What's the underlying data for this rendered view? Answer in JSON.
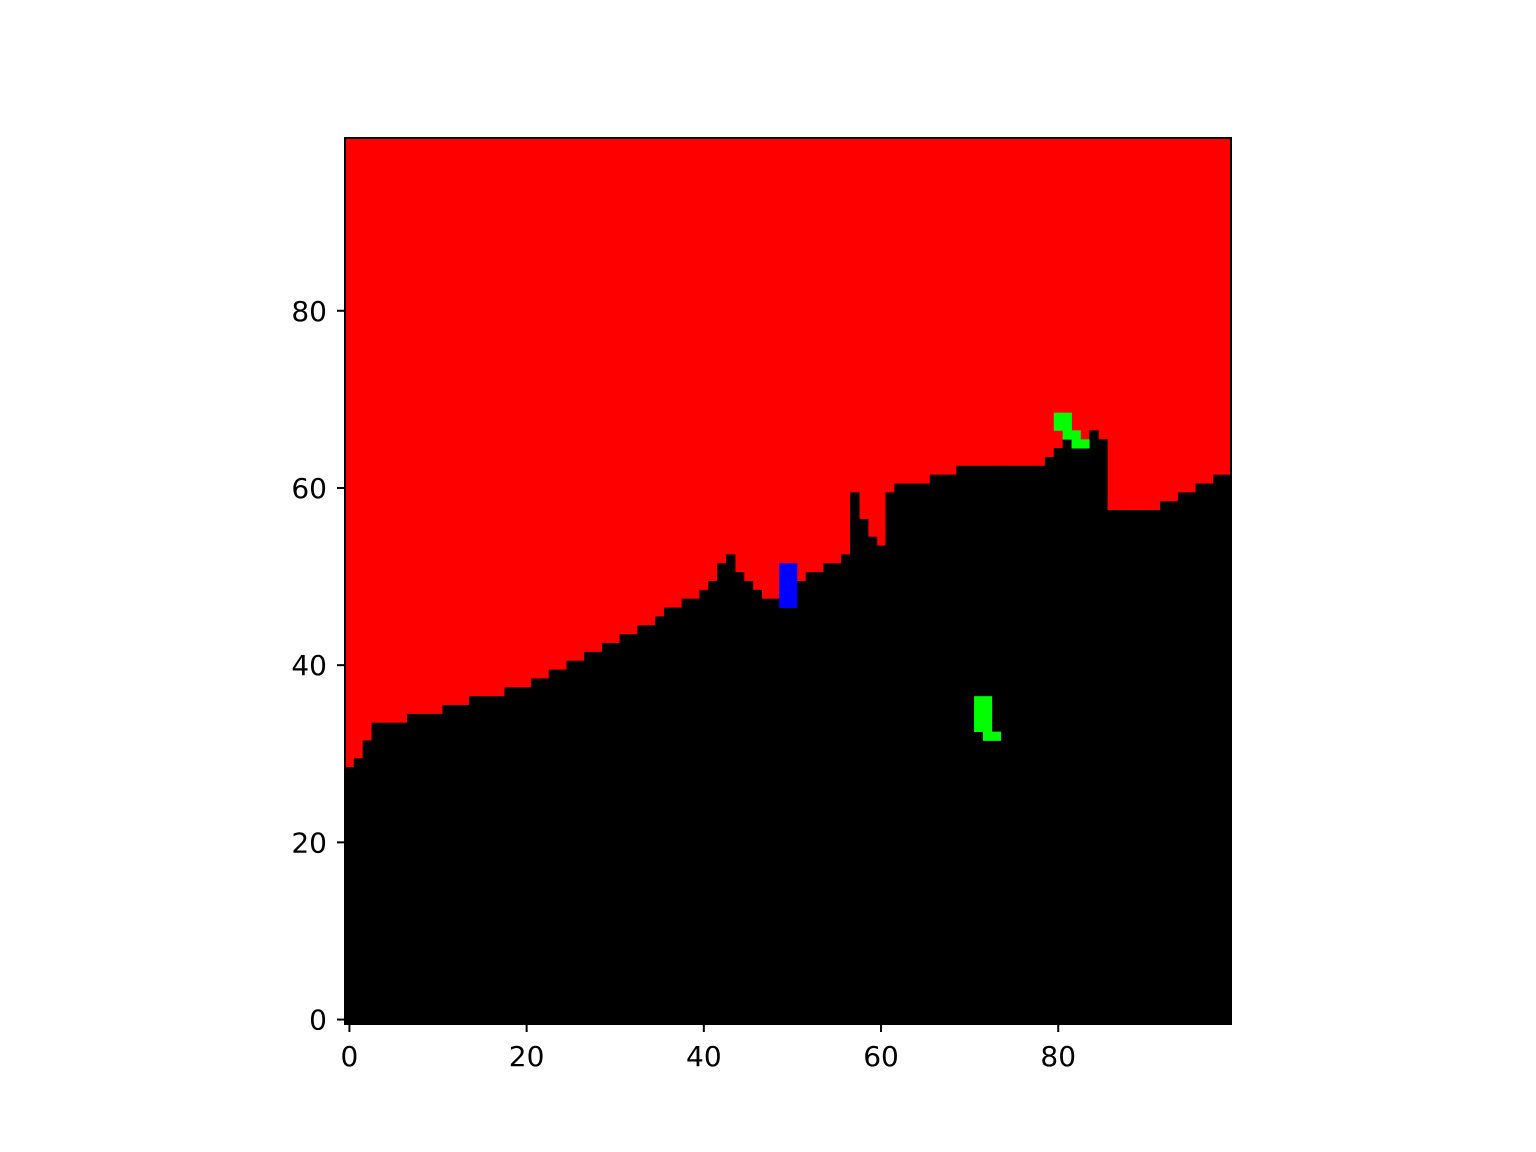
{
  "chart_data": {
    "type": "heatmap",
    "title": "",
    "xlabel": "",
    "ylabel": "",
    "xlim": [
      -0.5,
      99.5
    ],
    "ylim": [
      -0.5,
      99.5
    ],
    "origin": "lower",
    "grid": false,
    "colors": {
      "background": "#ff0000",
      "foreground": "#000000",
      "green_marker": "#00ff00",
      "blue_marker": "#0000ff"
    },
    "x_ticks": [
      0,
      20,
      40,
      60,
      80
    ],
    "x_tick_labels": [
      "0",
      "20",
      "40",
      "60",
      "80"
    ],
    "y_ticks": [
      0,
      20,
      40,
      60,
      80
    ],
    "y_tick_labels": [
      "0",
      "20",
      "40",
      "60",
      "80"
    ],
    "boundary": {
      "description": "For each column x, cells with y <= top are black; above is red.",
      "x": [
        0,
        1,
        2,
        3,
        7,
        11,
        14,
        18,
        21,
        23,
        25,
        27,
        29,
        31,
        33,
        35,
        36,
        38,
        40,
        41,
        42,
        43,
        44,
        45,
        46,
        47,
        49,
        51,
        52,
        54,
        56,
        57,
        58,
        59,
        60,
        61,
        62,
        63,
        66,
        69,
        74,
        79,
        80,
        81,
        82,
        83,
        84,
        85,
        86,
        87,
        92,
        94,
        96,
        98,
        99
      ],
      "top": [
        28,
        29,
        31,
        33,
        34,
        35,
        36,
        37,
        38,
        39,
        40,
        41,
        42,
        43,
        44,
        45,
        46,
        47,
        48,
        49,
        51,
        52,
        50,
        49,
        48,
        47,
        48,
        49,
        50,
        51,
        52,
        59,
        56,
        54,
        53,
        59,
        60,
        60,
        61,
        62,
        62,
        63,
        64,
        65,
        64,
        65,
        66,
        65,
        57,
        57,
        58,
        59,
        60,
        61,
        61
      ],
      "span_end": [
        0,
        1,
        2,
        6,
        10,
        13,
        17,
        20,
        22,
        24,
        26,
        28,
        30,
        32,
        34,
        35,
        37,
        39,
        40,
        41,
        42,
        43,
        44,
        45,
        46,
        48,
        50,
        51,
        53,
        55,
        56,
        57,
        58,
        59,
        60,
        61,
        62,
        65,
        68,
        73,
        78,
        79,
        80,
        81,
        82,
        83,
        84,
        85,
        86,
        91,
        93,
        95,
        97,
        98,
        99
      ]
    },
    "markers": [
      {
        "color": "blue",
        "cells": [
          [
            49,
            47
          ],
          [
            49,
            48
          ],
          [
            49,
            49
          ],
          [
            49,
            50
          ],
          [
            49,
            51
          ],
          [
            50,
            47
          ],
          [
            50,
            48
          ],
          [
            50,
            49
          ],
          [
            50,
            50
          ],
          [
            50,
            51
          ]
        ]
      },
      {
        "color": "green",
        "cells": [
          [
            80,
            67
          ],
          [
            80,
            68
          ],
          [
            81,
            67
          ],
          [
            81,
            68
          ],
          [
            81,
            66
          ],
          [
            82,
            66
          ],
          [
            82,
            65
          ],
          [
            83,
            65
          ]
        ]
      },
      {
        "color": "green",
        "cells": [
          [
            71,
            33
          ],
          [
            71,
            34
          ],
          [
            71,
            35
          ],
          [
            71,
            36
          ],
          [
            72,
            33
          ],
          [
            72,
            34
          ],
          [
            72,
            35
          ],
          [
            72,
            36
          ],
          [
            72,
            32
          ],
          [
            73,
            32
          ]
        ]
      }
    ]
  }
}
